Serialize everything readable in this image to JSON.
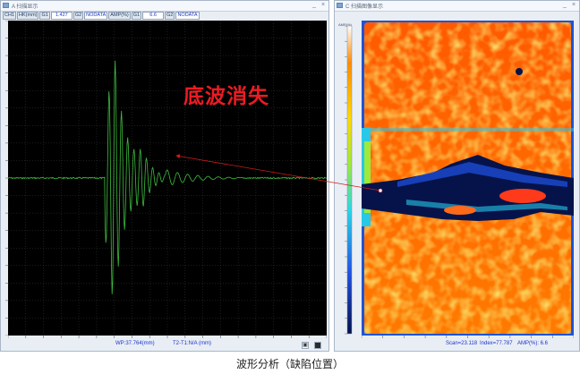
{
  "left_window": {
    "title": "A 扫描显示",
    "toolbar": {
      "ch_label": "CH1",
      "unit_label": "HK(mm)",
      "g1_label": "G1",
      "g1_value": "1.427",
      "g2_label": "G2",
      "g2_value": "NODATA",
      "amp_label": "AMP(%)",
      "g1b_label": "G1",
      "g1b_value": "6.6",
      "g2b_label": "G2",
      "g2b_value": "NODATA"
    },
    "status": {
      "wp": "WP:37.764(mm)",
      "t2t1": "T2-T1:N/A (mm)"
    }
  },
  "right_window": {
    "title": "C 扫描图像显示",
    "colorbar_title": "AMP(%)",
    "status": {
      "scan": "Scan=23.118",
      "index": "Index=77.787",
      "amp": "AMP(%): 6.6"
    }
  },
  "annotation": "底波消失",
  "caption": "波形分析（缺陷位置）",
  "colors": {
    "waveform": "#3dbd3d",
    "annotation": "#ec1b23",
    "arrow": "#d11a1a",
    "value_text": "#1a34c9"
  },
  "icons": {
    "window": "window-icon",
    "close": "close-icon",
    "minimize": "minimize-icon"
  }
}
